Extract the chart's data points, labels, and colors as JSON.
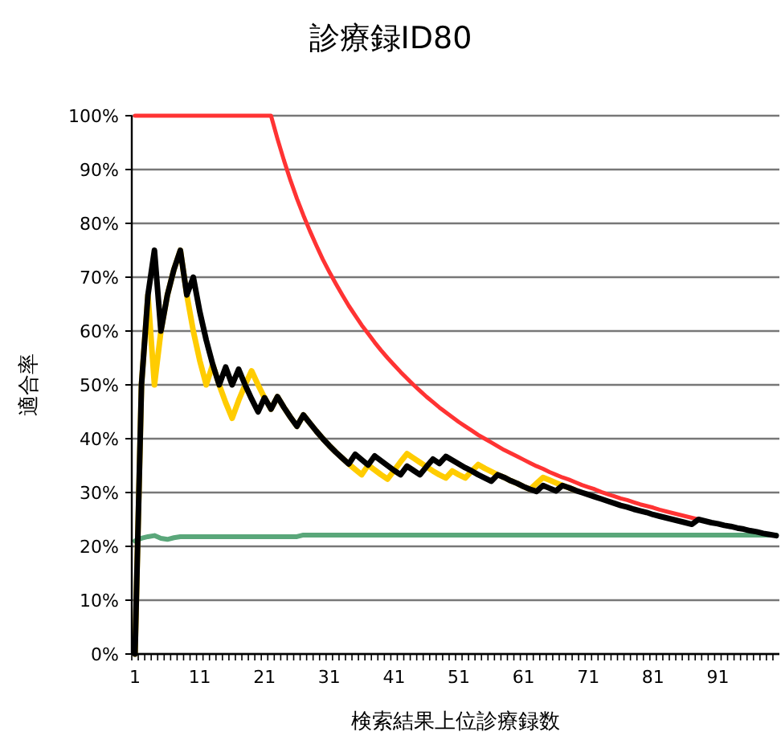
{
  "chart_data": {
    "type": "line",
    "title": "診療録ID80",
    "xlabel": "検索結果上位診療録数",
    "ylabel": "適合率",
    "categories": [
      "1",
      null,
      null,
      null,
      null,
      null,
      null,
      null,
      null,
      null,
      "11",
      null,
      null,
      null,
      null,
      null,
      null,
      null,
      null,
      null,
      "21",
      null,
      null,
      null,
      null,
      null,
      null,
      null,
      null,
      null,
      "31",
      null,
      null,
      null,
      null,
      null,
      null,
      null,
      null,
      null,
      "41",
      null,
      null,
      null,
      null,
      null,
      null,
      null,
      null,
      null,
      "51",
      null,
      null,
      null,
      null,
      null,
      null,
      null,
      null,
      null,
      "61",
      null,
      null,
      null,
      null,
      null,
      null,
      null,
      null,
      null,
      "71",
      null,
      null,
      null,
      null,
      null,
      null,
      null,
      null,
      null,
      "81",
      null,
      null,
      null,
      null,
      null,
      null,
      null,
      null,
      null,
      "91",
      null,
      null,
      null,
      null,
      null,
      null,
      null,
      null,
      null
    ],
    "ylim": [
      0,
      100
    ],
    "yticks": [
      {
        "value": 0,
        "label": "0%"
      },
      {
        "value": 10,
        "label": "10%"
      },
      {
        "value": 20,
        "label": "20%"
      },
      {
        "value": 30,
        "label": "30%"
      },
      {
        "value": 40,
        "label": "40%"
      },
      {
        "value": 50,
        "label": "50%"
      },
      {
        "value": 60,
        "label": "60%"
      },
      {
        "value": 70,
        "label": "70%"
      },
      {
        "value": 80,
        "label": "80%"
      },
      {
        "value": 90,
        "label": "90%"
      },
      {
        "value": 100,
        "label": "100%"
      }
    ],
    "grid": "y",
    "series": [
      {
        "color": "#5aa77a",
        "values": [
          21.0,
          21.5,
          21.8,
          22.0,
          21.5,
          21.3,
          21.6,
          21.8,
          21.8,
          21.8,
          21.8,
          21.8,
          21.8,
          21.8,
          21.8,
          21.8,
          21.8,
          21.8,
          21.8,
          21.8,
          21.8,
          21.8,
          21.8,
          21.8,
          21.8,
          21.8,
          22.1,
          22.1,
          22.1,
          22.1,
          22.1,
          22.1,
          22.1,
          22.1,
          22.1,
          22.1,
          22.1,
          22.1,
          22.1,
          22.1,
          22.1,
          22.1,
          22.1,
          22.1,
          22.1,
          22.1,
          22.1,
          22.1,
          22.1,
          22.1,
          22.1,
          22.1,
          22.1,
          22.1,
          22.1,
          22.1,
          22.1,
          22.1,
          22.1,
          22.1,
          22.1,
          22.1,
          22.1,
          22.1,
          22.1,
          22.1,
          22.1,
          22.1,
          22.1,
          22.1,
          22.1,
          22.1,
          22.1,
          22.1,
          22.1,
          22.1,
          22.1,
          22.1,
          22.1,
          22.1,
          22.1,
          22.1,
          22.1,
          22.1,
          22.1,
          22.1,
          22.1,
          22.1,
          22.1,
          22.1,
          22.1,
          22.1,
          22.1,
          22.1,
          22.1,
          22.1,
          22.1,
          22.1,
          22.1,
          22.1
        ]
      },
      {
        "color": "#ff3333",
        "values": [
          100,
          100,
          100,
          100,
          100,
          100,
          100,
          100,
          100,
          100,
          100,
          100,
          100,
          100,
          100,
          100,
          100,
          100,
          100,
          100,
          100,
          100,
          95.7,
          91.7,
          88.0,
          84.6,
          81.5,
          78.6,
          75.9,
          73.3,
          71.0,
          68.8,
          66.7,
          64.7,
          62.9,
          61.1,
          59.5,
          57.9,
          56.4,
          55.0,
          53.7,
          52.4,
          51.2,
          50.0,
          48.9,
          47.8,
          46.8,
          45.8,
          44.9,
          44.0,
          43.1,
          42.3,
          41.5,
          40.7,
          40.0,
          39.3,
          38.6,
          37.9,
          37.3,
          36.7,
          36.1,
          35.5,
          34.9,
          34.4,
          33.8,
          33.3,
          32.8,
          32.4,
          31.9,
          31.4,
          31.0,
          30.6,
          30.1,
          29.7,
          29.3,
          28.9,
          28.6,
          28.2,
          27.8,
          27.5,
          27.2,
          26.8,
          26.5,
          26.2,
          25.9,
          25.6,
          25.3,
          25.0,
          null,
          null,
          null,
          null,
          null,
          null,
          null,
          null,
          null,
          null,
          null,
          null
        ]
      },
      {
        "color": "#ffcc00",
        "values": [
          0,
          50.0,
          66.7,
          50.0,
          60.0,
          66.7,
          71.4,
          75.0,
          66.7,
          60.0,
          54.5,
          50.0,
          53.8,
          50.0,
          46.7,
          43.8,
          47.1,
          50.0,
          52.6,
          50.0,
          47.6,
          45.5,
          47.8,
          45.8,
          44.0,
          42.3,
          44.4,
          42.9,
          41.4,
          40.0,
          38.7,
          37.5,
          36.4,
          35.3,
          34.3,
          33.3,
          35.1,
          34.2,
          33.3,
          32.5,
          34.1,
          35.7,
          37.2,
          36.4,
          35.6,
          34.8,
          34.0,
          33.3,
          32.7,
          34.0,
          33.3,
          32.7,
          34.0,
          35.2,
          34.5,
          33.9,
          33.3,
          32.8,
          32.2,
          31.7,
          31.1,
          30.6,
          31.7,
          32.8,
          32.3,
          31.8,
          31.3,
          30.9,
          30.4,
          null,
          null,
          null,
          null,
          null,
          null,
          null,
          null,
          null,
          null,
          null,
          null,
          null,
          null,
          null,
          null,
          null,
          null,
          null,
          null,
          null,
          null,
          null,
          null,
          null,
          null,
          null,
          null,
          null,
          null,
          null
        ]
      },
      {
        "color": "#000000",
        "values": [
          0,
          50.0,
          66.7,
          75.0,
          60.0,
          66.7,
          71.4,
          75.0,
          66.7,
          70.0,
          63.6,
          58.3,
          53.8,
          50.0,
          53.3,
          50.0,
          52.9,
          50.0,
          47.4,
          45.0,
          47.6,
          45.5,
          47.8,
          45.8,
          44.0,
          42.3,
          44.4,
          42.9,
          41.4,
          40.0,
          38.7,
          37.5,
          36.4,
          35.3,
          37.1,
          36.1,
          35.1,
          36.8,
          35.9,
          35.0,
          34.1,
          33.3,
          34.9,
          34.1,
          33.3,
          34.8,
          36.2,
          35.4,
          36.7,
          36.0,
          35.3,
          34.6,
          34.0,
          33.3,
          32.7,
          32.1,
          33.3,
          32.8,
          32.2,
          31.7,
          31.1,
          30.6,
          30.2,
          31.3,
          30.8,
          30.3,
          31.3,
          30.9,
          30.4,
          30.0,
          29.6,
          29.2,
          28.8,
          28.4,
          28.0,
          27.6,
          27.3,
          26.9,
          26.6,
          26.3,
          25.9,
          25.6,
          25.3,
          25.0,
          24.7,
          24.4,
          24.1,
          25.0,
          24.7,
          24.4,
          24.2,
          23.9,
          23.7,
          23.4,
          23.2,
          22.9,
          22.7,
          22.4,
          22.2,
          22.0
        ]
      }
    ]
  }
}
